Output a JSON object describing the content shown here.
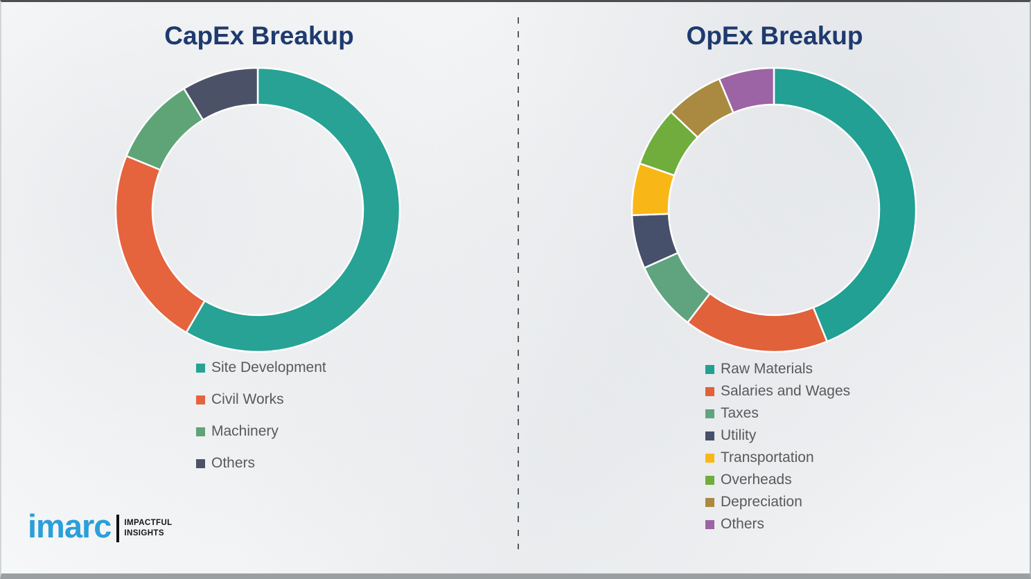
{
  "chart_data": [
    {
      "type": "pie",
      "subtype": "donut",
      "title": "CapEx Breakup",
      "categories": [
        "Site Development",
        "Civil Works",
        "Machinery",
        "Others"
      ],
      "values": [
        58.4,
        22.8,
        10.1,
        8.7
      ],
      "colors": [
        "#27a295",
        "#e5633d",
        "#5fa477",
        "#4b5268"
      ],
      "units": "percent_of_total",
      "start_angle_deg": 0,
      "direction": "clockwise",
      "legend_position": "below-left"
    },
    {
      "type": "pie",
      "subtype": "donut",
      "title": "OpEx Breakup",
      "categories": [
        "Raw Materials",
        "Salaries and Wages",
        "Taxes",
        "Utility",
        "Transportation",
        "Overheads",
        "Depreciation",
        "Others"
      ],
      "values": [
        43.9,
        16.5,
        7.9,
        6.1,
        5.9,
        6.8,
        6.6,
        6.3
      ],
      "colors": [
        "#21a093",
        "#e0613a",
        "#5fa47f",
        "#47506a",
        "#f9b717",
        "#70ad3d",
        "#a98a40",
        "#9c63a5"
      ],
      "units": "percent_of_total",
      "start_angle_deg": 0,
      "direction": "clockwise",
      "legend_position": "below-left"
    }
  ],
  "logo": {
    "brand": "imarc",
    "tagline_line1": "IMPACTFUL",
    "tagline_line2": "INSIGHTS"
  },
  "theme_colors": {
    "title_navy": "#1e3a6e",
    "legend_text_gray": "#595959",
    "logo_blue": "#2b9fd8",
    "background": "#f3f4f5"
  }
}
